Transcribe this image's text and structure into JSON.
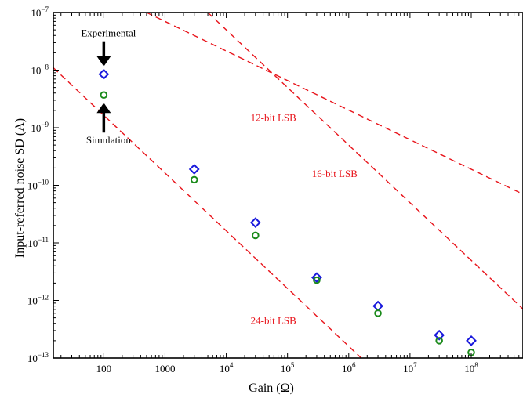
{
  "chart_data": {
    "type": "scatter",
    "xlabel": "Gain (Ω)",
    "ylabel": "Input-referred noise SD (A)",
    "x_scale": "log",
    "y_scale": "log",
    "xlim": [
      15,
      700000000
    ],
    "ylim": [
      1e-13,
      1e-07
    ],
    "grid": false,
    "x_ticks": [
      {
        "value": 100,
        "label": "100",
        "sup": ""
      },
      {
        "value": 1000,
        "label": "1000",
        "sup": ""
      },
      {
        "value": 10000,
        "label": "10",
        "sup": "4"
      },
      {
        "value": 100000,
        "label": "10",
        "sup": "5"
      },
      {
        "value": 1000000,
        "label": "10",
        "sup": "6"
      },
      {
        "value": 10000000,
        "label": "10",
        "sup": "7"
      },
      {
        "value": 100000000,
        "label": "10",
        "sup": "8"
      }
    ],
    "y_ticks": [
      {
        "value": 1e-13,
        "label": "10",
        "sup": "−13"
      },
      {
        "value": 1e-12,
        "label": "10",
        "sup": "−12"
      },
      {
        "value": 1e-11,
        "label": "10",
        "sup": "−11"
      },
      {
        "value": 1e-10,
        "label": "10",
        "sup": "−10"
      },
      {
        "value": 1e-09,
        "label": "10",
        "sup": "−9"
      },
      {
        "value": 1e-08,
        "label": "10",
        "sup": "−8"
      },
      {
        "value": 1e-07,
        "label": "10",
        "sup": "−7"
      }
    ],
    "series": [
      {
        "name": "Experimental",
        "marker": "diamond",
        "color": "#1a1adc",
        "x": [
          100,
          3000,
          30000,
          300000,
          3000000,
          30000000,
          100000000
        ],
        "y": [
          8.5e-09,
          1.9e-10,
          2.25e-11,
          2.5e-12,
          8e-13,
          2.5e-13,
          2e-13
        ]
      },
      {
        "name": "Simulation",
        "marker": "circle",
        "color": "#1a8a1a",
        "x": [
          100,
          3000,
          30000,
          300000,
          3000000,
          30000000,
          100000000
        ],
        "y": [
          3.7e-09,
          1.25e-10,
          1.35e-11,
          2.25e-12,
          6e-13,
          2e-13,
          1.25e-13
        ]
      }
    ],
    "reference_lines": [
      {
        "label": "12-bit LSB",
        "color": "#e8141b",
        "x1": 500,
        "y1": 1e-07,
        "x2": 700000000,
        "y2": 7e-11,
        "label_x": 25000,
        "label_y": 1.3e-09
      },
      {
        "label": "16-bit LSB",
        "color": "#e8141b",
        "x1": 5000,
        "y1": 1e-07,
        "x2": 700000000,
        "y2": 7.1e-13,
        "label_x": 250000,
        "label_y": 1.4e-10
      },
      {
        "label": "24-bit LSB",
        "color": "#e8141b",
        "x1": 15,
        "y1": 1.1e-08,
        "x2": 1600000,
        "y2": 1e-13,
        "label_x": 25000,
        "label_y": 3.9e-13
      }
    ],
    "annotations": [
      {
        "text": "Experimental",
        "direction": "down",
        "target_x": 100,
        "target_y": 8.5e-09
      },
      {
        "text": "Simulation",
        "direction": "up",
        "target_x": 100,
        "target_y": 3.7e-09
      }
    ]
  }
}
